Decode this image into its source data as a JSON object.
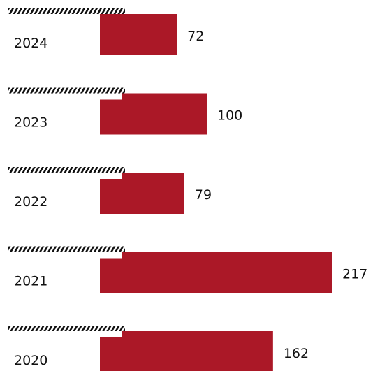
{
  "chart_data": {
    "type": "bar",
    "orientation": "horizontal",
    "categories": [
      "2024",
      "2023",
      "2022",
      "2021",
      "2020"
    ],
    "values": [
      72,
      100,
      79,
      217,
      162
    ],
    "title": "",
    "xlabel": "",
    "ylabel": "",
    "xlim": [
      0,
      217
    ],
    "grid": false,
    "legend": "none",
    "colors": {
      "bar": "#ab1827",
      "hatch": "#111111"
    },
    "value_labels": [
      "72",
      "100",
      "79",
      "217",
      "162"
    ]
  }
}
